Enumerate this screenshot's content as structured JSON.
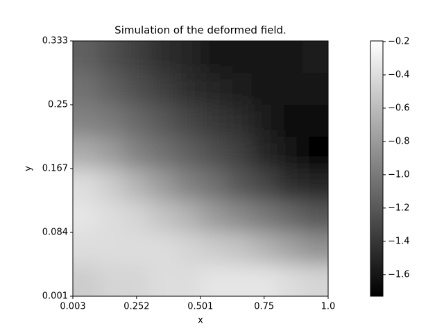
{
  "chart_data": {
    "type": "heatmap",
    "title": "Simulation of the deformed field.",
    "x_label": "x",
    "y_label": "y",
    "xlim": [
      0.003,
      1.0
    ],
    "ylim": [
      0.001,
      0.333
    ],
    "xticks": [
      0.003,
      0.252,
      0.501,
      0.75,
      {
        "value": 1,
        "label": "1.0"
      }
    ],
    "yticks": [
      0.001,
      0.084,
      0.167,
      0.25,
      0.333
    ],
    "colormap": "gray",
    "clim": [
      -1.73,
      -0.196
    ],
    "cticks": [
      {
        "value": -0.2,
        "label": "−0.2"
      },
      {
        "value": -0.4,
        "label": "−0.4"
      },
      {
        "value": -0.6,
        "label": "−0.6"
      },
      {
        "value": -0.8,
        "label": "−0.8"
      },
      {
        "value": -1.0,
        "label": "−1.0"
      },
      {
        "value": -1.2,
        "label": "−1.2"
      },
      {
        "value": -1.4,
        "label": "−1.4"
      },
      {
        "value": -1.6,
        "label": "−1.6"
      }
    ],
    "z": [
      [
        -1.15,
        -1.25,
        -1.35,
        -1.45,
        -1.5,
        -1.58,
        -1.62,
        -1.6,
        -1.58,
        -1.55
      ],
      [
        -1.05,
        -1.15,
        -1.25,
        -1.35,
        -1.45,
        -1.5,
        -1.55,
        -1.58,
        -1.62,
        -1.6
      ],
      [
        -0.95,
        -1.0,
        -1.1,
        -1.2,
        -1.3,
        -1.4,
        -1.45,
        -1.55,
        -1.65,
        -1.65
      ],
      [
        -0.7,
        -0.8,
        -0.95,
        -1.05,
        -1.15,
        -1.25,
        -1.35,
        -1.5,
        -1.6,
        -1.7
      ],
      [
        -0.4,
        -0.5,
        -0.65,
        -0.8,
        -0.95,
        -1.05,
        -1.2,
        -1.3,
        -1.45,
        -1.5
      ],
      [
        -0.35,
        -0.4,
        -0.45,
        -0.55,
        -0.65,
        -0.8,
        -0.9,
        -1.0,
        -1.1,
        -1.2
      ],
      [
        -0.4,
        -0.4,
        -0.4,
        -0.4,
        -0.45,
        -0.5,
        -0.55,
        -0.65,
        -0.75,
        -0.85
      ],
      [
        -0.5,
        -0.45,
        -0.45,
        -0.4,
        -0.4,
        -0.35,
        -0.35,
        -0.35,
        -0.4,
        -0.45
      ]
    ]
  }
}
